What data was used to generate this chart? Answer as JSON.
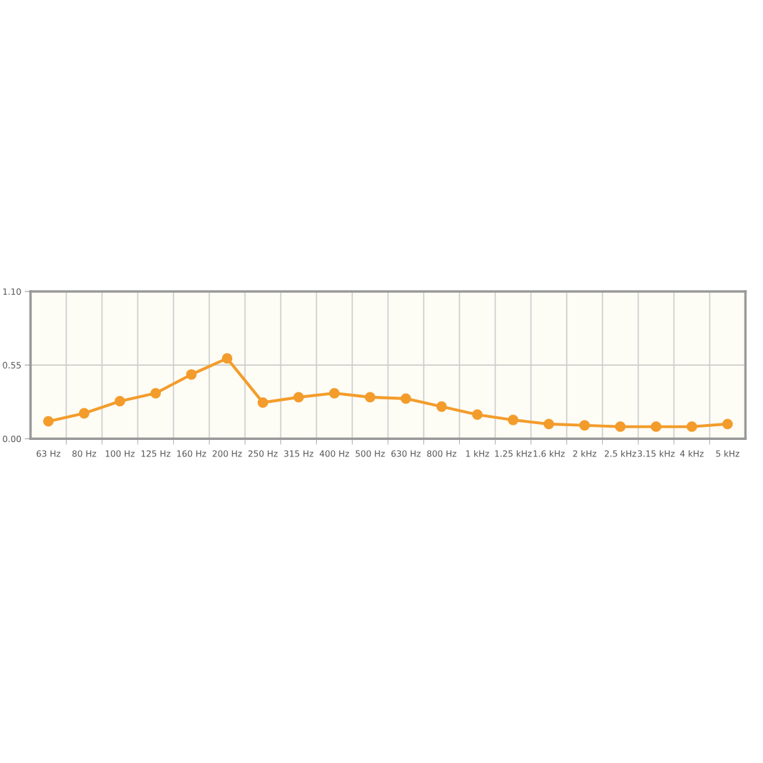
{
  "chart_data": {
    "type": "line",
    "categories": [
      "63 Hz",
      "80 Hz",
      "100 Hz",
      "125 Hz",
      "160 Hz",
      "200 Hz",
      "250 Hz",
      "315 Hz",
      "400 Hz",
      "500 Hz",
      "630 Hz",
      "800 Hz",
      "1 kHz",
      "1.25 kHz",
      "1.6 kHz",
      "2 kHz",
      "2.5 kHz",
      "3.15 kHz",
      "4 kHz",
      "5 kHz"
    ],
    "series": [
      {
        "color": "#f39c2b",
        "values": [
          0.13,
          0.19,
          0.28,
          0.34,
          0.48,
          0.6,
          0.27,
          0.31,
          0.34,
          0.31,
          0.3,
          0.24,
          0.18,
          0.14,
          0.11,
          0.1,
          0.09,
          0.09,
          0.09,
          0.11
        ]
      }
    ],
    "ylim": [
      0,
      1.1
    ],
    "yticks": [
      {
        "value": 0,
        "label": "0.00"
      },
      {
        "value": 0.55,
        "label": "0.55"
      },
      {
        "value": 1.1,
        "label": "1.10"
      }
    ],
    "grid": true,
    "marker": "circle",
    "line_style": "solid"
  }
}
